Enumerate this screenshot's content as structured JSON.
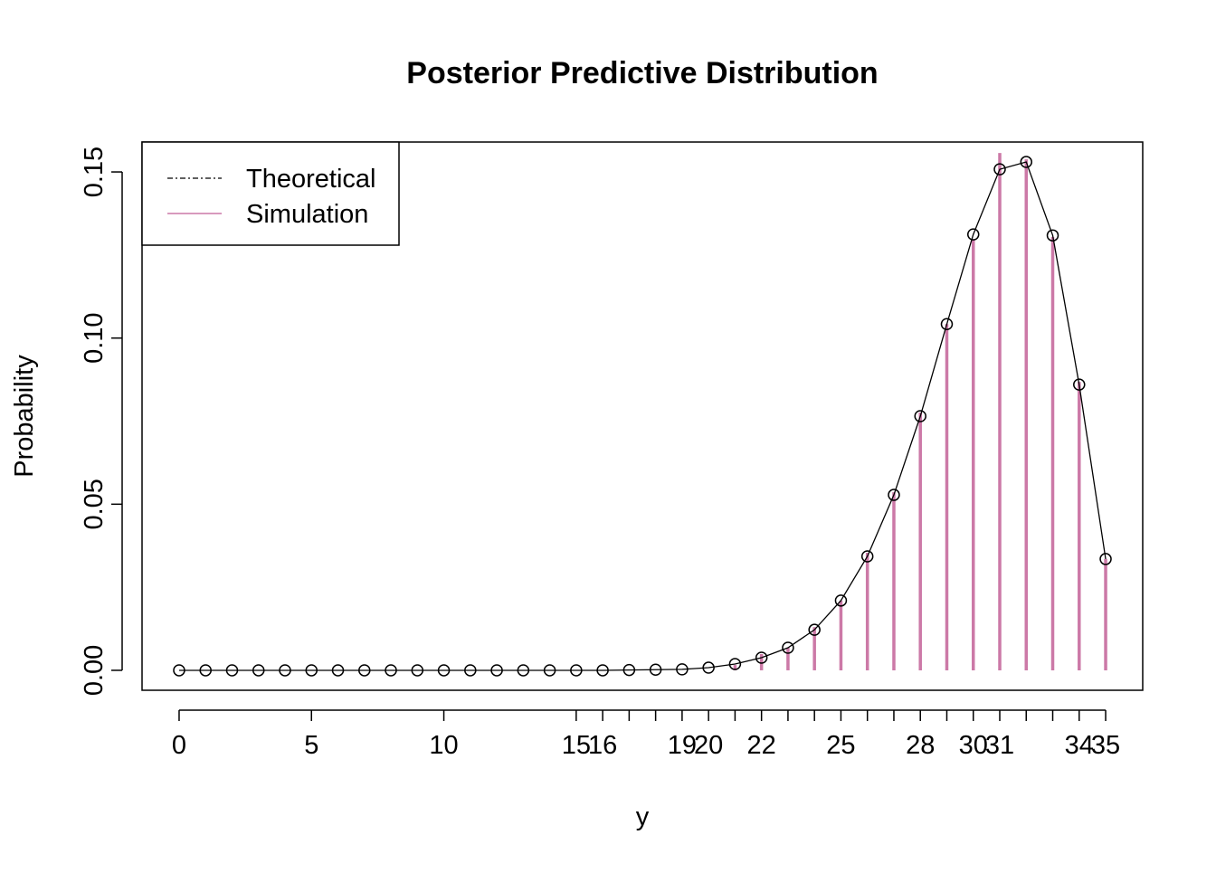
{
  "chart_data": {
    "type": "line",
    "title": "Posterior Predictive Distribution",
    "x_label": "y",
    "y_label": "Probability",
    "xlim": [
      -1.4,
      36.4
    ],
    "ylim": [
      -0.006,
      0.159
    ],
    "xticks": [
      0,
      5,
      10,
      15,
      16,
      19,
      20,
      22,
      25,
      28,
      30,
      31,
      34,
      35
    ],
    "xtick_marks_unlabeled": [
      17,
      18,
      21,
      23,
      24,
      26,
      27,
      29,
      32,
      33
    ],
    "yticks": [
      {
        "value": 0,
        "label": "0.00"
      },
      {
        "value": 0.05,
        "label": "0.05"
      },
      {
        "value": 0.1,
        "label": "0.10"
      },
      {
        "value": 0.15,
        "label": "0.15"
      }
    ],
    "legend": "top-left",
    "series": [
      {
        "name": "Theoretical",
        "color": "#000000",
        "style": "points-line",
        "x": [
          0,
          1,
          2,
          3,
          4,
          5,
          6,
          7,
          8,
          9,
          10,
          11,
          12,
          13,
          14,
          15,
          16,
          17,
          18,
          19,
          20,
          21,
          22,
          23,
          24,
          25,
          26,
          27,
          28,
          29,
          30,
          31,
          32,
          33,
          34,
          35
        ],
        "values": [
          0,
          0,
          0,
          0,
          0,
          0,
          0,
          0,
          0,
          0,
          0,
          0,
          0,
          0,
          0,
          0,
          0,
          0.0001,
          0.0002,
          0.0003,
          0.0008,
          0.0019,
          0.0038,
          0.0068,
          0.0122,
          0.021,
          0.0343,
          0.0528,
          0.0765,
          0.1042,
          0.1312,
          0.1508,
          0.153,
          0.1309,
          0.086,
          0.0335
        ]
      },
      {
        "name": "Simulation",
        "color": "#CC79A7",
        "style": "spikes",
        "x": [
          21,
          22,
          23,
          24,
          25,
          26,
          27,
          28,
          29,
          30,
          31,
          32,
          33,
          34,
          35
        ],
        "values": [
          0.0016,
          0.0049,
          0.0068,
          0.013,
          0.021,
          0.0354,
          0.0536,
          0.0776,
          0.1042,
          0.1298,
          0.1557,
          0.1538,
          0.1304,
          0.0868,
          0.0335
        ]
      }
    ]
  }
}
